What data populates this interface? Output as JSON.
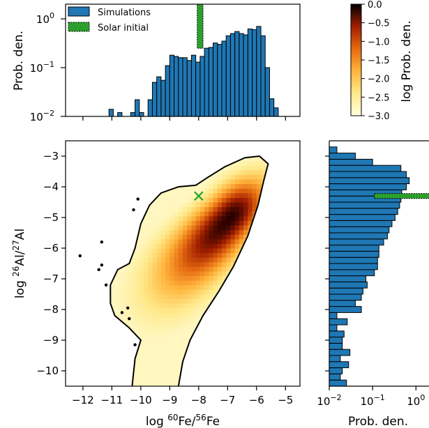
{
  "chart_data": [
    {
      "id": "top-histogram",
      "type": "bar",
      "title": "",
      "xlabel": "",
      "ylabel": "Prob. den.",
      "yscale": "log",
      "xlim": [
        -12.6,
        -4.5
      ],
      "ylim": [
        0.01,
        2.0
      ],
      "xticks": [
        -12,
        -11,
        -10,
        -9,
        -8,
        -7,
        -6,
        -5
      ],
      "yticks": [
        {
          "value": 0.01,
          "label": "10",
          "exp": "−2"
        },
        {
          "value": 0.1,
          "label": "10",
          "exp": "−1"
        },
        {
          "value": 1,
          "label": "10",
          "exp": "0"
        }
      ],
      "legend_position": "top-left",
      "series": [
        {
          "name": "Simulations",
          "color": "#1f77b4",
          "bin_edges_start": -11.1,
          "bin_width": 0.15,
          "values": [
            0.014,
            0,
            0.012,
            0,
            0,
            0.012,
            0.022,
            0.012,
            0,
            0.022,
            0.05,
            0.065,
            0.055,
            0.11,
            0.18,
            0.17,
            0.16,
            0.16,
            0.14,
            0.18,
            0.13,
            0.17,
            0.25,
            0.26,
            0.32,
            0.3,
            0.35,
            0.45,
            0.5,
            0.55,
            0.5,
            0.47,
            0.62,
            0.6,
            0.7,
            0.45,
            0.1,
            0.023,
            0.015
          ]
        },
        {
          "name": "Solar initial",
          "color": "#2ca02c",
          "x_range": [
            -8.05,
            -7.85
          ],
          "value": 2.0
        }
      ]
    },
    {
      "id": "colorbar",
      "type": "heatmap",
      "label": "log Prob. den.",
      "range": [
        -3.0,
        0.0
      ],
      "ticks": [
        "0.0",
        "−0.5",
        "−1.0",
        "−1.5",
        "−2.0",
        "−2.5",
        "−3.0"
      ],
      "tick_values": [
        0.0,
        -0.5,
        -1.0,
        -1.5,
        -2.0,
        -2.5,
        -3.0
      ],
      "colormap": "afmhot_r"
    },
    {
      "id": "main-density",
      "type": "heatmap",
      "xlabel_parts": [
        "log ",
        "60",
        "Fe/",
        "56",
        "Fe"
      ],
      "ylabel_parts": [
        "log ",
        "26",
        "Al/",
        "27",
        "Al"
      ],
      "xlim": [
        -12.6,
        -4.5
      ],
      "ylim": [
        -10.5,
        -2.5
      ],
      "xticks": [
        "−12",
        "−11",
        "−10",
        "−9",
        "−8",
        "−7",
        "−6",
        "−5"
      ],
      "xtick_values": [
        -12,
        -11,
        -10,
        -9,
        -8,
        -7,
        -6,
        -5
      ],
      "yticks": [
        "−3",
        "−4",
        "−5",
        "−6",
        "−7",
        "−8",
        "−9",
        "−10"
      ],
      "ytick_values": [
        -3,
        -4,
        -5,
        -6,
        -7,
        -8,
        -9,
        -10
      ],
      "peak": {
        "x": -6.9,
        "y": -5.0
      },
      "solar_marker": {
        "x": -8.0,
        "y": -4.3,
        "color": "#2ca02c"
      },
      "outlier_points": [
        {
          "x": -12.1,
          "y": -6.25
        },
        {
          "x": -11.45,
          "y": -6.7
        },
        {
          "x": -11.35,
          "y": -6.55
        },
        {
          "x": -11.35,
          "y": -5.8
        },
        {
          "x": -11.2,
          "y": -7.2
        },
        {
          "x": -10.65,
          "y": -8.1
        },
        {
          "x": -10.45,
          "y": -7.95
        },
        {
          "x": -10.4,
          "y": -8.3
        },
        {
          "x": -10.25,
          "y": -4.75
        },
        {
          "x": -10.1,
          "y": -4.4
        },
        {
          "x": -10.2,
          "y": -9.15
        }
      ],
      "contour": [
        [
          -10.3,
          -10.5
        ],
        [
          -10.2,
          -9.6
        ],
        [
          -10.0,
          -9.0
        ],
        [
          -10.4,
          -8.6
        ],
        [
          -10.9,
          -8.2
        ],
        [
          -11.05,
          -7.8
        ],
        [
          -11.05,
          -7.2
        ],
        [
          -10.8,
          -6.7
        ],
        [
          -10.4,
          -6.5
        ],
        [
          -10.2,
          -6.0
        ],
        [
          -10.0,
          -5.2
        ],
        [
          -9.7,
          -4.6
        ],
        [
          -9.3,
          -4.2
        ],
        [
          -8.7,
          -4.0
        ],
        [
          -8.1,
          -3.95
        ],
        [
          -7.7,
          -3.7
        ],
        [
          -7.1,
          -3.35
        ],
        [
          -6.4,
          -3.05
        ],
        [
          -5.9,
          -3.0
        ],
        [
          -5.6,
          -3.25
        ],
        [
          -5.75,
          -3.8
        ],
        [
          -5.95,
          -4.6
        ],
        [
          -6.3,
          -5.6
        ],
        [
          -6.8,
          -6.6
        ],
        [
          -7.3,
          -7.4
        ],
        [
          -7.85,
          -8.2
        ],
        [
          -8.3,
          -9.0
        ],
        [
          -8.55,
          -9.7
        ],
        [
          -8.7,
          -10.5
        ]
      ]
    },
    {
      "id": "right-histogram",
      "type": "bar",
      "orientation": "horizontal",
      "xlabel": "Prob. den.",
      "xscale": "log",
      "xlim": [
        0.01,
        2.0
      ],
      "ylim": [
        -10.5,
        -2.5
      ],
      "xticks": [
        {
          "value": 0.01,
          "label": "10",
          "exp": "−2"
        },
        {
          "value": 0.1,
          "label": "10",
          "exp": "−1"
        },
        {
          "value": 1,
          "label": "10",
          "exp": "0"
        }
      ],
      "series": [
        {
          "name": "Simulations",
          "color": "#1f77b4",
          "bin_edges_start": -10.5,
          "bin_width": 0.2,
          "values": [
            0.025,
            0.018,
            0.02,
            0.028,
            0.018,
            0.03,
            0.02,
            0.02,
            0.022,
            0.015,
            0.026,
            0.015,
            0.055,
            0.04,
            0.055,
            0.06,
            0.075,
            0.07,
            0.11,
            0.13,
            0.13,
            0.14,
            0.14,
            0.18,
            0.22,
            0.24,
            0.28,
            0.33,
            0.38,
            0.42,
            0.45,
            0.47,
            0.6,
            0.7,
            0.6,
            0.45,
            0.1,
            0.04,
            0.015
          ]
        },
        {
          "name": "Solar initial",
          "color": "#2ca02c",
          "y_range": [
            -4.38,
            -4.22
          ],
          "value": 2.0
        }
      ]
    }
  ],
  "legend": {
    "items": [
      {
        "label": "Simulations",
        "color": "#1f77b4",
        "style": "solid"
      },
      {
        "label": "Solar initial",
        "color": "#2ca02c",
        "style": "dotted"
      }
    ]
  }
}
